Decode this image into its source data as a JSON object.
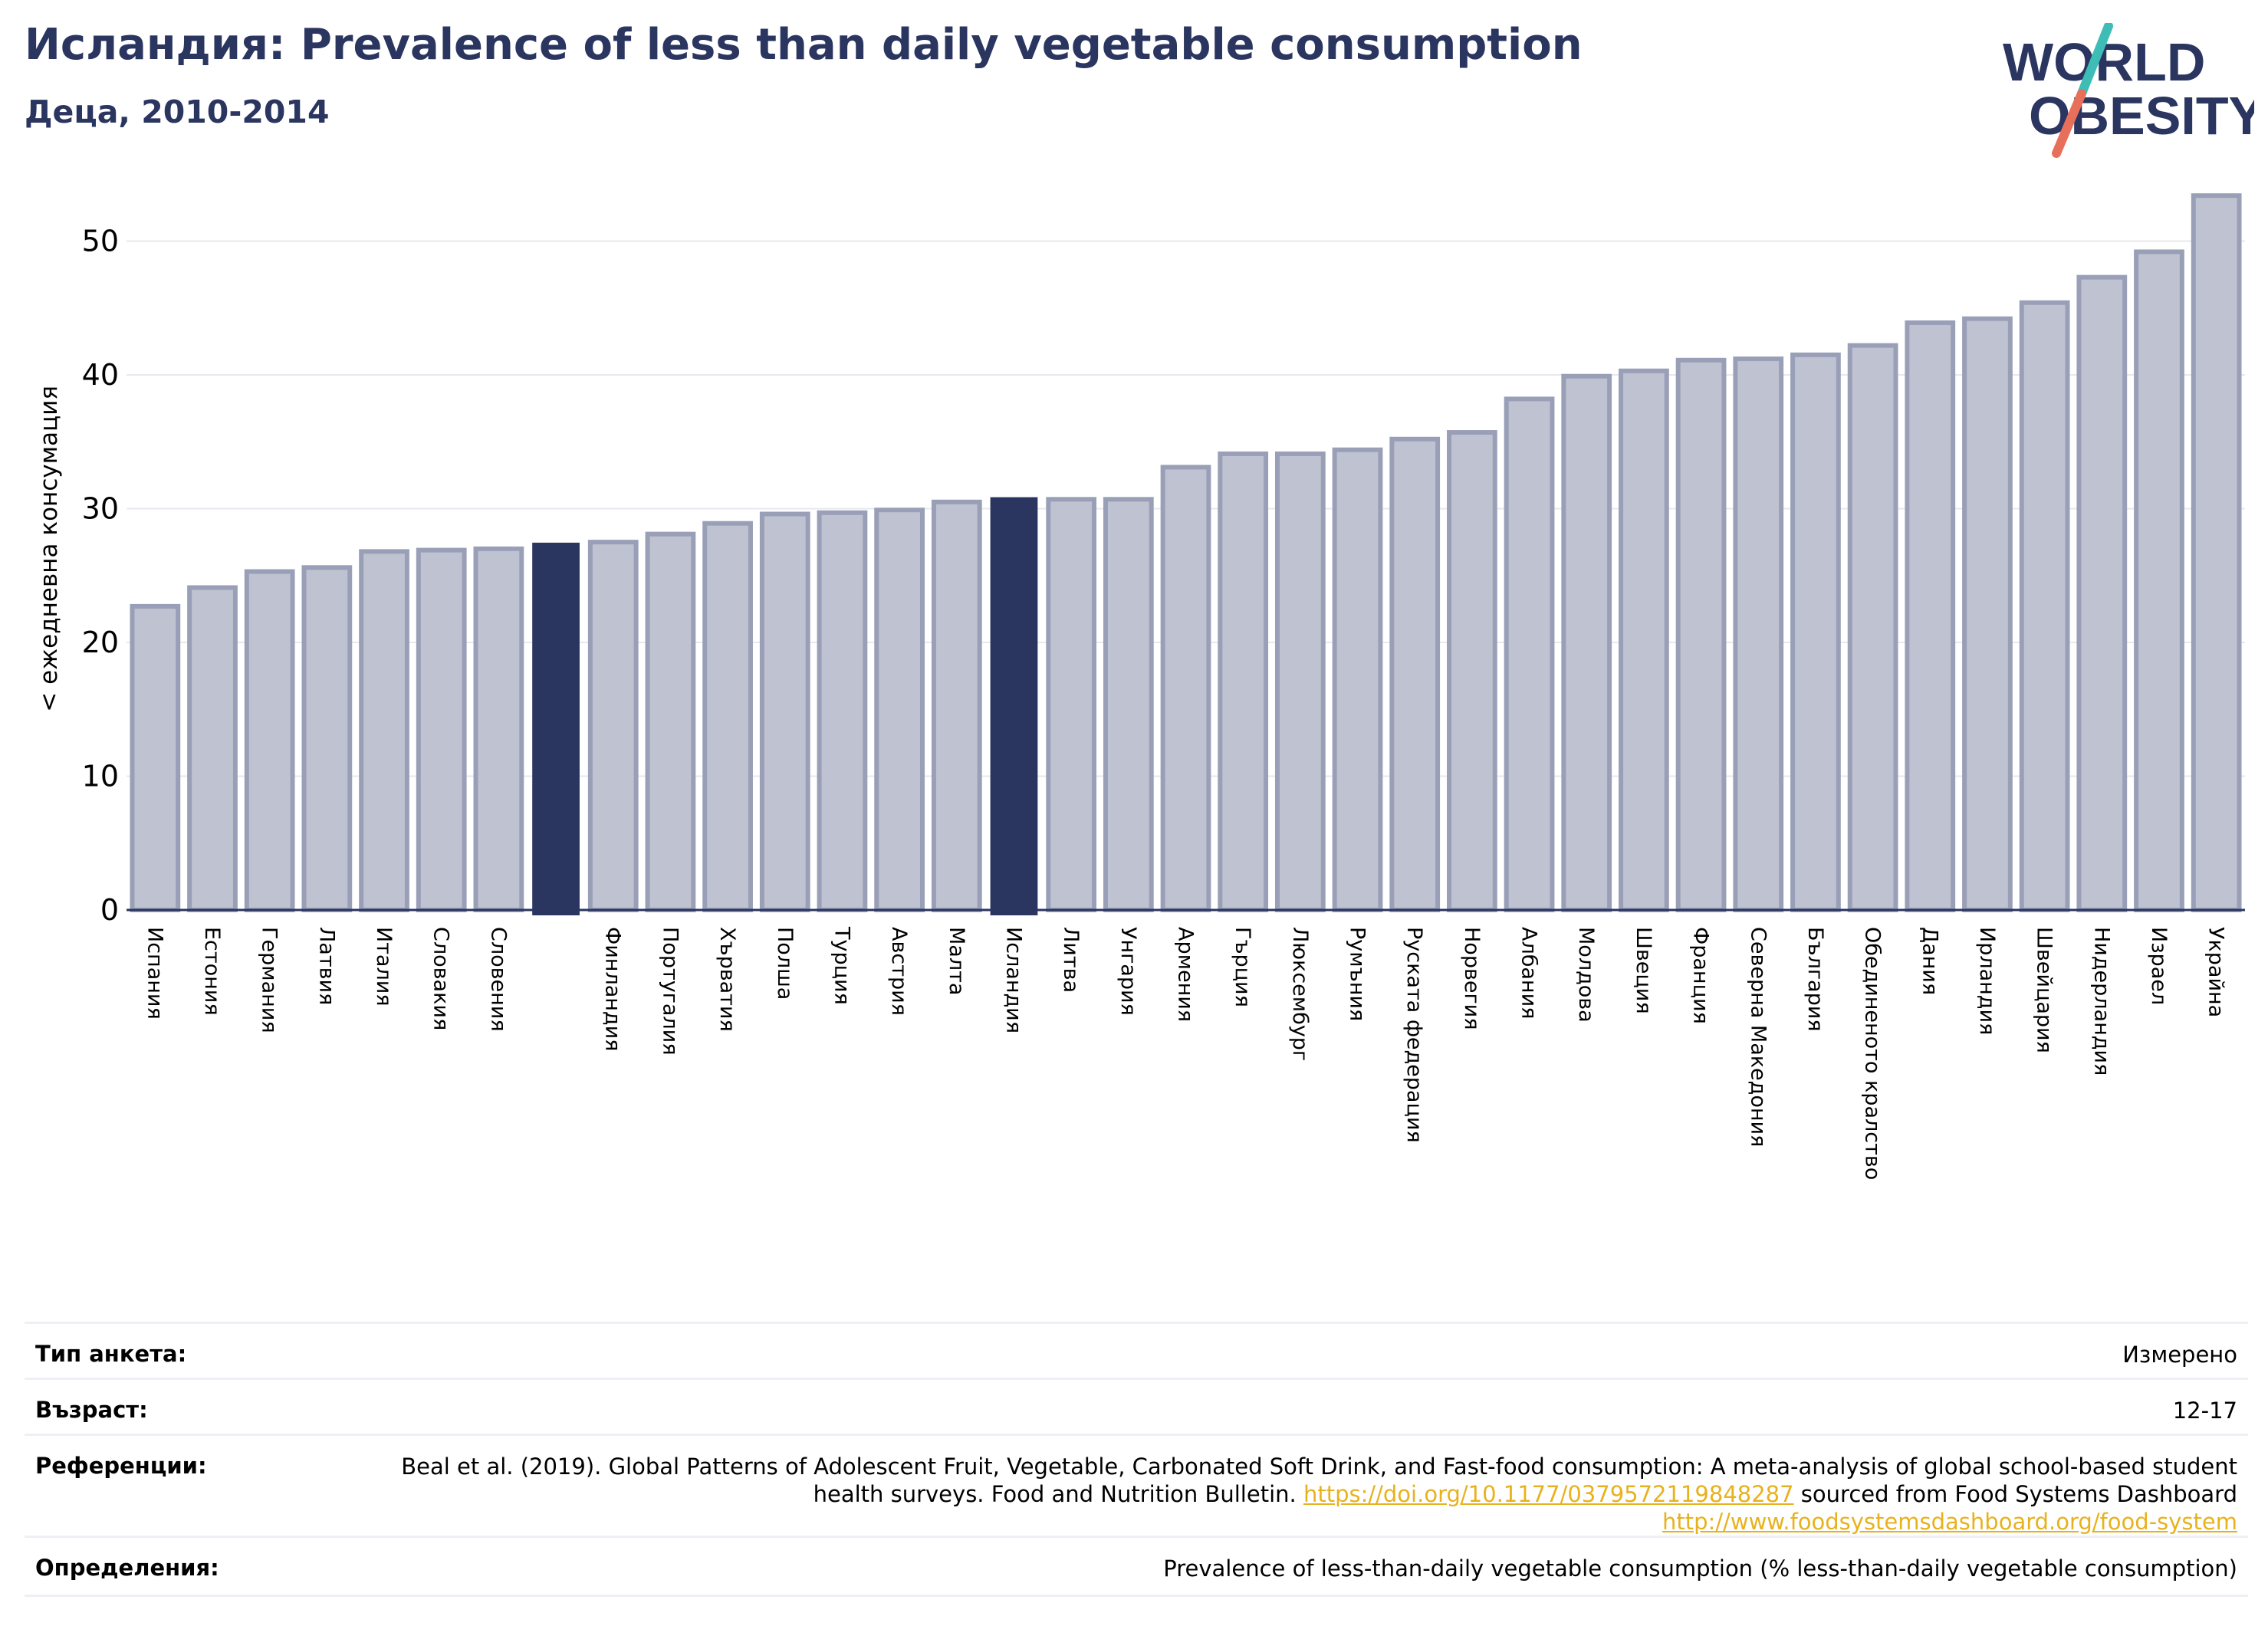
{
  "header": {
    "title": "Исландия: Prevalence of less than daily vegetable consumption",
    "subtitle": "Деца, 2010-2014",
    "logo_line1": "WORLD",
    "logo_line2": "OBESITY"
  },
  "colors": {
    "bar": "#bfc2d0",
    "bar_border": "#9a9fb8",
    "highlight": "#2a3560",
    "grid": "#e8e8ee",
    "accent_teal": "#3dbdb5",
    "accent_coral": "#e8705a"
  },
  "chart_data": {
    "type": "bar",
    "ylabel": "< ежедневна консумация",
    "ylim": [
      0,
      55
    ],
    "yticks": [
      0,
      10,
      20,
      30,
      40,
      50
    ],
    "grid": true,
    "categories": [
      "Испания",
      "Естония",
      "Германия",
      "Латвия",
      "Италия",
      "Словакия",
      "Словения",
      "",
      "Финландия",
      "Португалия",
      "Хърватия",
      "Полша",
      "Турция",
      "Австрия",
      "Малта",
      "Исландия",
      "Литва",
      "Унгария",
      "Армения",
      "Гърция",
      "Люксембург",
      "Румъния",
      "Руската федерация",
      "Норвегия",
      "Албания",
      "Молдова",
      "Швеция",
      "Франция",
      "Северна Македония",
      "България",
      "Обединеното кралство",
      "Дания",
      "Ирландия",
      "Швейцария",
      "Нидерландия",
      "Израел",
      "Украйна"
    ],
    "values": [
      22.7,
      24.1,
      25.3,
      25.6,
      26.8,
      26.9,
      27.0,
      27.4,
      27.5,
      28.1,
      28.9,
      29.6,
      29.7,
      29.9,
      30.5,
      30.8,
      30.7,
      30.7,
      33.1,
      34.1,
      34.1,
      34.4,
      35.2,
      35.7,
      38.2,
      39.9,
      40.3,
      41.1,
      41.2,
      41.5,
      42.2,
      43.9,
      44.2,
      45.4,
      47.3,
      49.2,
      53.4
    ],
    "highlighted": [
      7,
      15
    ]
  },
  "meta": {
    "survey_type": {
      "label": "Тип анкета:",
      "value": "Измерено"
    },
    "age": {
      "label": "Възраст:",
      "value": "12-17"
    },
    "references": {
      "label": "Референции:",
      "text1": "Beal et al. (2019). Global Patterns of Adolescent Fruit, Vegetable, Carbonated Soft Drink, and Fast-food consumption: A meta-analysis of global school-based student health surveys. Food and Nutrition Bulletin. ",
      "link1": "https://doi.org/10.1177/0379572119848287",
      "text2": " sourced from Food Systems Dashboard ",
      "link2": "http://www.foodsystemsdashboard.org/food-system"
    },
    "definitions": {
      "label": "Определения:",
      "value": "Prevalence of less-than-daily vegetable consumption (% less-than-daily vegetable consumption)"
    }
  }
}
